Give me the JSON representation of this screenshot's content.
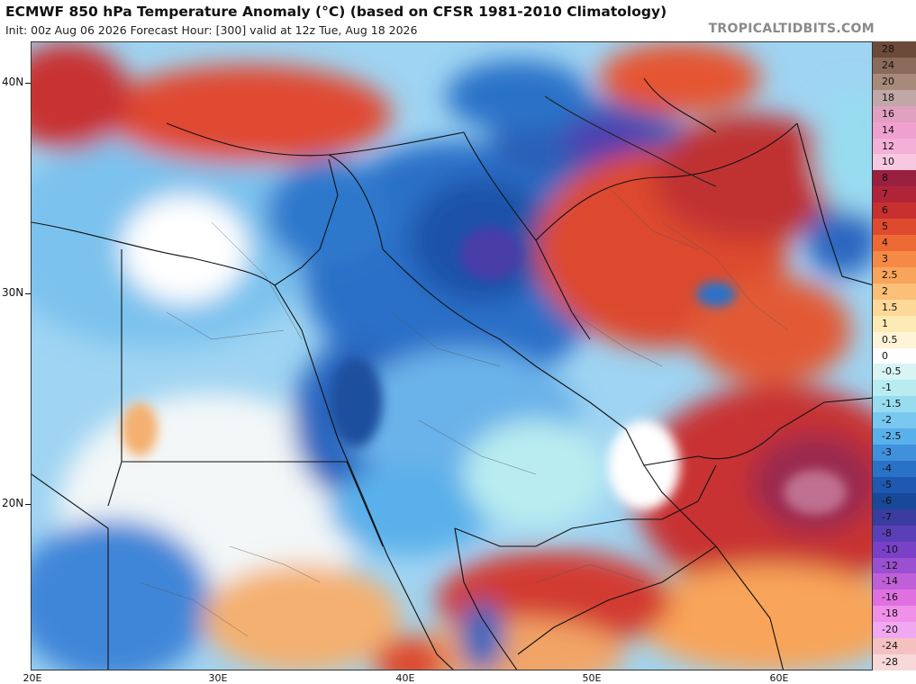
{
  "header": {
    "title": "ECMWF 850 hPa Temperature Anomaly (°C) (based on CFSR 1981-2010 Climatology)",
    "subtitle": "Init: 00z Aug 06 2026   Forecast Hour: [300]   valid at 12z Tue, Aug 18 2026",
    "brand": "TROPICALTIDBITS.COM"
  },
  "map": {
    "lat_labels": [
      "40N",
      "30N",
      "20N"
    ],
    "lon_labels": [
      "20E",
      "30E",
      "40E",
      "50E",
      "60E"
    ],
    "lon_range": [
      20,
      65
    ],
    "lat_range": [
      12.8,
      42
    ],
    "regions": [
      {
        "name": "central-arabia-cold-anomaly",
        "lon": 45,
        "lat": 28,
        "anomaly": -5
      },
      {
        "name": "iraq-cold-anomaly",
        "lon": 44,
        "lat": 33,
        "anomaly": -7
      },
      {
        "name": "caspian-cold-anomaly",
        "lon": 50,
        "lat": 39,
        "anomaly": -8
      },
      {
        "name": "red-sea-cold-anomaly",
        "lon": 37,
        "lat": 25,
        "anomaly": -6
      },
      {
        "name": "egypt-cool-anomaly",
        "lon": 30,
        "lat": 28,
        "anomaly": -2
      },
      {
        "name": "chad-cool-anomaly",
        "lon": 22,
        "lat": 17,
        "anomaly": -3
      },
      {
        "name": "iran-warm-anomaly",
        "lon": 55,
        "lat": 33,
        "anomaly": 5
      },
      {
        "name": "turkmenistan-warm-anomaly",
        "lon": 58,
        "lat": 38,
        "anomaly": 7
      },
      {
        "name": "arabian-sea-warm-anomaly",
        "lon": 61,
        "lat": 21,
        "anomaly": 8
      },
      {
        "name": "yemen-warm-anomaly",
        "lon": 46,
        "lat": 16,
        "anomaly": 6
      },
      {
        "name": "turkey-warm-anomaly",
        "lon": 30,
        "lat": 39,
        "anomaly": 5
      },
      {
        "name": "greece-warm-anomaly",
        "lon": 21,
        "lat": 40,
        "anomaly": 6
      },
      {
        "name": "sudan-neutral-anomaly",
        "lon": 32,
        "lat": 19,
        "anomaly": 1
      }
    ]
  },
  "colorbar": {
    "levels": [
      "28",
      "24",
      "20",
      "18",
      "16",
      "14",
      "12",
      "10",
      "8",
      "7",
      "6",
      "5",
      "4",
      "3",
      "2.5",
      "2",
      "1.5",
      "1",
      "0.5",
      "0",
      "-0.5",
      "-1",
      "-1.5",
      "-2",
      "-2.5",
      "-3",
      "-4",
      "-5",
      "-6",
      "-7",
      "-8",
      "-10",
      "-12",
      "-14",
      "-16",
      "-18",
      "-20",
      "-24",
      "-28"
    ],
    "colors": [
      "#6b4a3a",
      "#8a6a5a",
      "#a88a7a",
      "#c0a8a8",
      "#e0a0c0",
      "#f0a0d0",
      "#f5b0d8",
      "#f8c8e0",
      "#9a2040",
      "#b0243a",
      "#c83030",
      "#dd4a2e",
      "#ee6a35",
      "#f48a45",
      "#f8a45a",
      "#fbbf78",
      "#fdd898",
      "#fdebb5",
      "#fff4d8",
      "#ffffff",
      "#d8f4f4",
      "#b8ecf0",
      "#98dcf0",
      "#78c8f0",
      "#5ab0ea",
      "#4090dc",
      "#2a72c8",
      "#1e58b0",
      "#184898",
      "#3a3ca0",
      "#5a40b8",
      "#7a40c8",
      "#9a50d0",
      "#c060d8",
      "#e070e0",
      "#f090e8",
      "#f0a8f0",
      "#f4c0c0",
      "#f8d8d8"
    ]
  }
}
